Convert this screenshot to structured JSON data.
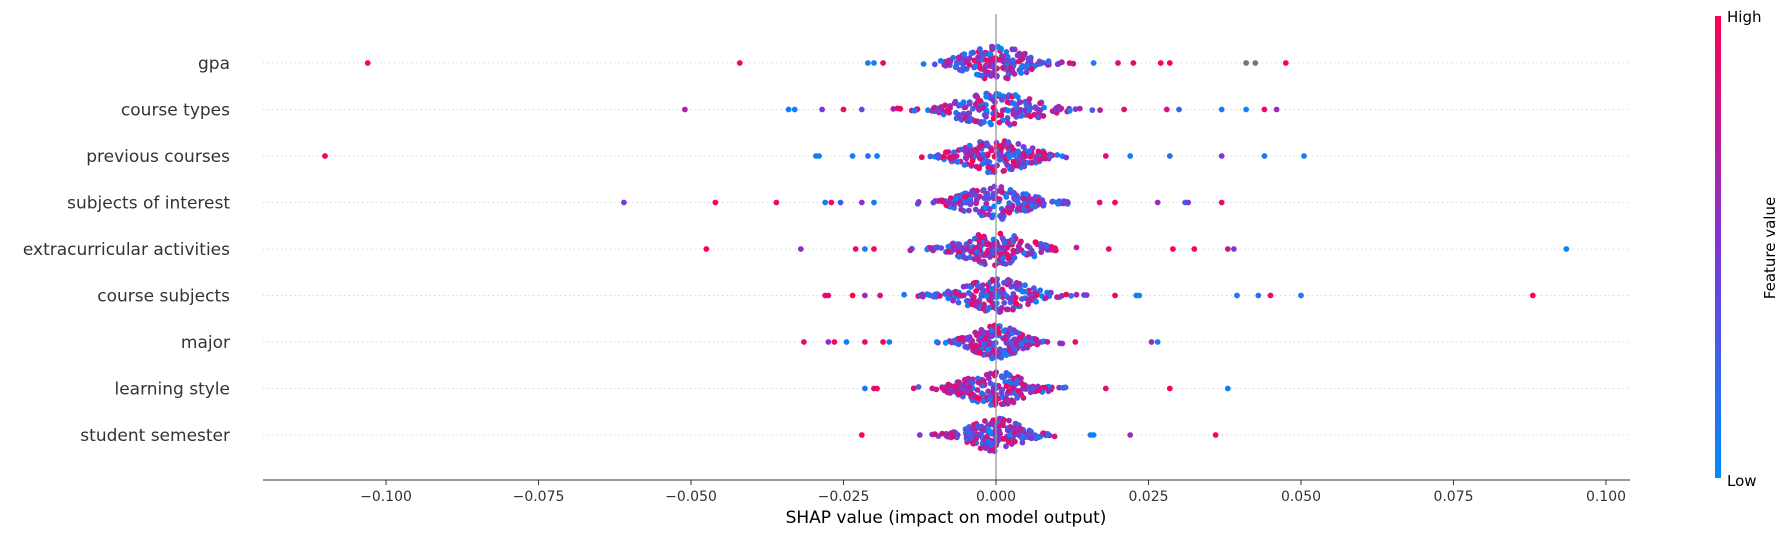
{
  "chart_data": {
    "type": "scatter",
    "subtype": "shap-beeswarm",
    "xlabel": "SHAP value (impact on model output)",
    "xlim": [
      -0.12,
      0.104
    ],
    "xticks": [
      -0.1,
      -0.075,
      -0.05,
      -0.025,
      0.0,
      0.025,
      0.05,
      0.075,
      0.1
    ],
    "xtick_labels": [
      "−0.100",
      "−0.075",
      "−0.050",
      "−0.025",
      "0.000",
      "0.025",
      "0.050",
      "0.075",
      "0.100"
    ],
    "features": [
      "gpa",
      "course types",
      "previous courses",
      "subjects of interest",
      "extracurricular activities",
      "course subjects",
      "major",
      "learning style",
      "student semester"
    ],
    "colorbar": {
      "title": "Feature value",
      "high_label": "High",
      "low_label": "Low",
      "high_color": "#ff0052",
      "low_color": "#008bfb",
      "mid_color": "#7c38d6"
    },
    "missing_color": "#777777",
    "points": [
      {
        "feature": "gpa",
        "x": -0.103,
        "v": 1.0
      },
      {
        "feature": "gpa",
        "x": -0.042,
        "v": 0.95
      },
      {
        "feature": "gpa",
        "x": -0.021,
        "v": 0.1
      },
      {
        "feature": "gpa",
        "x": -0.02,
        "v": 0.05
      },
      {
        "feature": "gpa",
        "x": -0.0185,
        "v": 0.9
      },
      {
        "feature": "gpa",
        "x": 0.016,
        "v": 0.1
      },
      {
        "feature": "gpa",
        "x": 0.02,
        "v": 0.85
      },
      {
        "feature": "gpa",
        "x": 0.0225,
        "v": 0.9
      },
      {
        "feature": "gpa",
        "x": 0.027,
        "v": 1.0
      },
      {
        "feature": "gpa",
        "x": 0.0285,
        "v": 0.95
      },
      {
        "feature": "gpa",
        "x": 0.041,
        "v": null
      },
      {
        "feature": "gpa",
        "x": 0.0425,
        "v": null
      },
      {
        "feature": "gpa",
        "x": 0.0475,
        "v": 1.0
      },
      {
        "feature": "course types",
        "x": -0.051,
        "v": 0.7
      },
      {
        "feature": "course types",
        "x": -0.034,
        "v": 0.1
      },
      {
        "feature": "course types",
        "x": -0.033,
        "v": 0.05
      },
      {
        "feature": "course types",
        "x": -0.0285,
        "v": 0.5
      },
      {
        "feature": "course types",
        "x": -0.025,
        "v": 0.9
      },
      {
        "feature": "course types",
        "x": -0.022,
        "v": 0.4
      },
      {
        "feature": "course types",
        "x": 0.021,
        "v": 0.9
      },
      {
        "feature": "course types",
        "x": 0.028,
        "v": 0.85
      },
      {
        "feature": "course types",
        "x": 0.03,
        "v": 0.2
      },
      {
        "feature": "course types",
        "x": 0.037,
        "v": 0.1
      },
      {
        "feature": "course types",
        "x": 0.041,
        "v": 0.05
      },
      {
        "feature": "course types",
        "x": 0.044,
        "v": 0.9
      },
      {
        "feature": "course types",
        "x": 0.046,
        "v": 0.6
      },
      {
        "feature": "previous courses",
        "x": -0.11,
        "v": 1.0
      },
      {
        "feature": "previous courses",
        "x": -0.0295,
        "v": 0.1
      },
      {
        "feature": "previous courses",
        "x": -0.029,
        "v": 0.05
      },
      {
        "feature": "previous courses",
        "x": -0.0235,
        "v": 0.1
      },
      {
        "feature": "previous courses",
        "x": -0.021,
        "v": 0.2
      },
      {
        "feature": "previous courses",
        "x": -0.0195,
        "v": 0.05
      },
      {
        "feature": "previous courses",
        "x": 0.018,
        "v": 0.9
      },
      {
        "feature": "previous courses",
        "x": 0.022,
        "v": 0.1
      },
      {
        "feature": "previous courses",
        "x": 0.0285,
        "v": 0.15
      },
      {
        "feature": "previous courses",
        "x": 0.037,
        "v": 0.5
      },
      {
        "feature": "previous courses",
        "x": 0.044,
        "v": 0.1
      },
      {
        "feature": "previous courses",
        "x": 0.0505,
        "v": 0.05
      },
      {
        "feature": "subjects of interest",
        "x": -0.061,
        "v": 0.5
      },
      {
        "feature": "subjects of interest",
        "x": -0.046,
        "v": 1.0
      },
      {
        "feature": "subjects of interest",
        "x": -0.036,
        "v": 0.9
      },
      {
        "feature": "subjects of interest",
        "x": -0.028,
        "v": 0.1
      },
      {
        "feature": "subjects of interest",
        "x": -0.027,
        "v": 0.95
      },
      {
        "feature": "subjects of interest",
        "x": -0.0255,
        "v": 0.3
      },
      {
        "feature": "subjects of interest",
        "x": -0.022,
        "v": 0.6
      },
      {
        "feature": "subjects of interest",
        "x": -0.02,
        "v": 0.1
      },
      {
        "feature": "subjects of interest",
        "x": 0.017,
        "v": 0.9
      },
      {
        "feature": "subjects of interest",
        "x": 0.0195,
        "v": 0.95
      },
      {
        "feature": "subjects of interest",
        "x": 0.0265,
        "v": 0.6
      },
      {
        "feature": "subjects of interest",
        "x": 0.031,
        "v": 0.2
      },
      {
        "feature": "subjects of interest",
        "x": 0.0315,
        "v": 0.5
      },
      {
        "feature": "subjects of interest",
        "x": 0.037,
        "v": 0.9
      },
      {
        "feature": "extracurricular activities",
        "x": -0.0475,
        "v": 1.0
      },
      {
        "feature": "extracurricular activities",
        "x": -0.032,
        "v": 0.6
      },
      {
        "feature": "extracurricular activities",
        "x": -0.023,
        "v": 0.9
      },
      {
        "feature": "extracurricular activities",
        "x": -0.0215,
        "v": 0.1
      },
      {
        "feature": "extracurricular activities",
        "x": -0.02,
        "v": 0.95
      },
      {
        "feature": "extracurricular activities",
        "x": 0.0185,
        "v": 0.9
      },
      {
        "feature": "extracurricular activities",
        "x": 0.029,
        "v": 1.0
      },
      {
        "feature": "extracurricular activities",
        "x": 0.0325,
        "v": 0.95
      },
      {
        "feature": "extracurricular activities",
        "x": 0.038,
        "v": 0.8
      },
      {
        "feature": "extracurricular activities",
        "x": 0.039,
        "v": 0.5
      },
      {
        "feature": "extracurricular activities",
        "x": 0.0935,
        "v": 0.05
      },
      {
        "feature": "course subjects",
        "x": -0.028,
        "v": 0.95
      },
      {
        "feature": "course subjects",
        "x": -0.0275,
        "v": 0.9
      },
      {
        "feature": "course subjects",
        "x": -0.0235,
        "v": 1.0
      },
      {
        "feature": "course subjects",
        "x": -0.0215,
        "v": 0.6
      },
      {
        "feature": "course subjects",
        "x": -0.019,
        "v": 0.85
      },
      {
        "feature": "course subjects",
        "x": 0.0195,
        "v": 0.9
      },
      {
        "feature": "course subjects",
        "x": 0.023,
        "v": 0.1
      },
      {
        "feature": "course subjects",
        "x": 0.0235,
        "v": 0.05
      },
      {
        "feature": "course subjects",
        "x": 0.0395,
        "v": 0.1
      },
      {
        "feature": "course subjects",
        "x": 0.043,
        "v": 0.2
      },
      {
        "feature": "course subjects",
        "x": 0.045,
        "v": 0.9
      },
      {
        "feature": "course subjects",
        "x": 0.05,
        "v": 0.1
      },
      {
        "feature": "course subjects",
        "x": 0.088,
        "v": 1.0
      },
      {
        "feature": "major",
        "x": -0.0315,
        "v": 0.9
      },
      {
        "feature": "major",
        "x": -0.0275,
        "v": 0.6
      },
      {
        "feature": "major",
        "x": -0.0265,
        "v": 0.95
      },
      {
        "feature": "major",
        "x": -0.0245,
        "v": 0.1
      },
      {
        "feature": "major",
        "x": -0.0215,
        "v": 0.9
      },
      {
        "feature": "major",
        "x": -0.0185,
        "v": 1.0
      },
      {
        "feature": "major",
        "x": -0.0175,
        "v": 0.05
      },
      {
        "feature": "major",
        "x": 0.013,
        "v": 0.9
      },
      {
        "feature": "major",
        "x": 0.0255,
        "v": 0.6
      },
      {
        "feature": "major",
        "x": 0.0265,
        "v": 0.1
      },
      {
        "feature": "learning style",
        "x": -0.0215,
        "v": 0.1
      },
      {
        "feature": "learning style",
        "x": -0.02,
        "v": 0.9
      },
      {
        "feature": "learning style",
        "x": -0.0195,
        "v": 0.95
      },
      {
        "feature": "learning style",
        "x": 0.018,
        "v": 0.9
      },
      {
        "feature": "learning style",
        "x": 0.0285,
        "v": 0.95
      },
      {
        "feature": "learning style",
        "x": 0.038,
        "v": 0.1
      },
      {
        "feature": "student semester",
        "x": -0.022,
        "v": 1.0
      },
      {
        "feature": "student semester",
        "x": -0.0125,
        "v": 0.5
      },
      {
        "feature": "student semester",
        "x": 0.0155,
        "v": 0.1
      },
      {
        "feature": "student semester",
        "x": 0.016,
        "v": 0.05
      },
      {
        "feature": "student semester",
        "x": 0.022,
        "v": 0.6
      },
      {
        "feature": "student semester",
        "x": 0.036,
        "v": 1.0
      }
    ],
    "core_spread": {
      "gpa": 0.016,
      "course types": 0.02,
      "previous courses": 0.017,
      "subjects of interest": 0.016,
      "extracurricular activities": 0.017,
      "course subjects": 0.017,
      "major": 0.012,
      "learning style": 0.016,
      "student semester": 0.013
    },
    "core_count": 190,
    "grid": false
  }
}
